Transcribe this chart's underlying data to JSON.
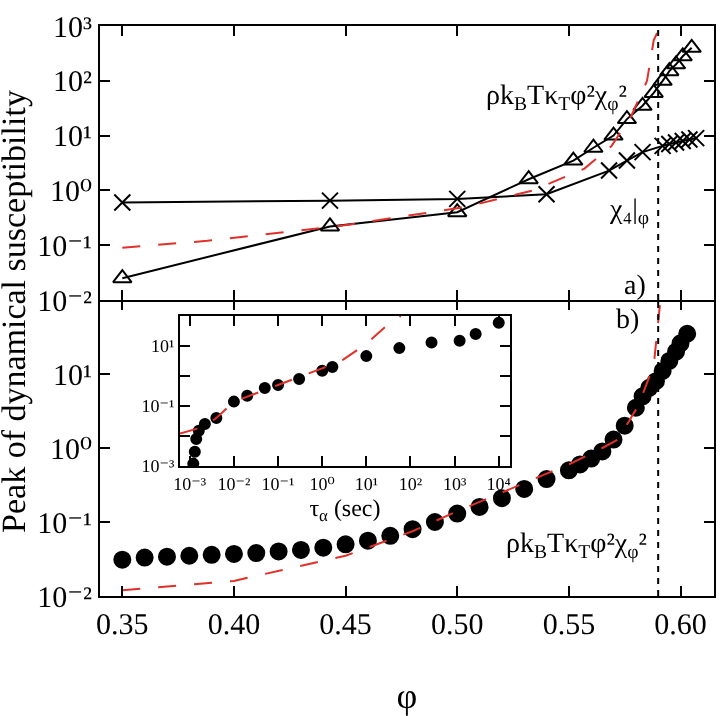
{
  "chart_data": [
    {
      "type": "line",
      "ylabel": "Peak of dynamical susceptibility",
      "log": "y",
      "tick_labels": "y",
      "xlim": [
        0.34,
        0.615
      ],
      "ylim": [
        0.01,
        1000
      ],
      "xticks": [
        {
          "value": 0.35,
          "label": null
        },
        {
          "value": 0.4,
          "label": null
        },
        {
          "value": 0.45,
          "label": null
        },
        {
          "value": 0.5,
          "label": null
        },
        {
          "value": 0.55,
          "label": null
        },
        {
          "value": 0.6,
          "label": null
        }
      ],
      "yticks": [
        {
          "value": 0.01,
          "label": "10⁻²"
        },
        {
          "value": 0.1,
          "label": "10⁻¹"
        },
        {
          "value": 1,
          "label": "10⁰"
        },
        {
          "value": 10,
          "label": "10¹"
        },
        {
          "value": 100,
          "label": "10²"
        },
        {
          "value": 1000,
          "label": "10³"
        }
      ],
      "series": [
        {
          "color": "#000000",
          "marker": "cross",
          "x": [
            0.35,
            0.443,
            0.5,
            0.54,
            0.568,
            0.576,
            0.583,
            0.592,
            0.595,
            0.598,
            0.601,
            0.604,
            0.607
          ],
          "values": [
            0.6,
            0.65,
            0.7,
            0.85,
            2.3,
            3.5,
            5,
            6.5,
            7,
            7.5,
            8,
            8.5,
            9
          ]
        },
        {
          "color": "#000000",
          "marker": "triangle",
          "x": [
            0.35,
            0.443,
            0.5,
            0.532,
            0.552,
            0.561,
            0.57,
            0.576,
            0.583,
            0.588,
            0.592,
            0.595,
            0.598,
            0.601,
            0.605
          ],
          "values": [
            0.025,
            0.22,
            0.4,
            1.6,
            3.5,
            6,
            10,
            20,
            35,
            60,
            100,
            150,
            200,
            280,
            400
          ]
        },
        {
          "color": "#e0302a",
          "marker": "none",
          "line_style": "dashed",
          "x": [
            0.35,
            0.388,
            0.446,
            0.504,
            0.534,
            0.557,
            0.569,
            0.578,
            0.585,
            0.588,
            0.591
          ],
          "values": [
            0.09,
            0.12,
            0.22,
            0.5,
            1,
            2.5,
            6.4,
            23,
            100,
            550,
            1000
          ]
        }
      ],
      "ref_lines": [
        {
          "axis": "x",
          "value": 0.59,
          "color": "#000000",
          "line_style": "dotted"
        }
      ],
      "annotations": [
        "ρk$_{B}$Tκ$_{T}$φ²χ$_{φ}$²",
        "χ₄|$_{φ}$",
        "a)"
      ]
    },
    {
      "type": "scatter",
      "xlabel": "φ",
      "log": "y",
      "xlim": [
        0.34,
        0.615
      ],
      "ylim": [
        0.01,
        100
      ],
      "xticks": [
        {
          "value": 0.35,
          "label": "0.35"
        },
        {
          "value": 0.4,
          "label": "0.40"
        },
        {
          "value": 0.45,
          "label": "0.45"
        },
        {
          "value": 0.5,
          "label": "0.50"
        },
        {
          "value": 0.55,
          "label": "0.55"
        },
        {
          "value": 0.6,
          "label": "0.60"
        }
      ],
      "yticks": [
        {
          "value": 0.01,
          "label": "10⁻²"
        },
        {
          "value": 0.1,
          "label": "10⁻¹"
        },
        {
          "value": 1,
          "label": "10⁰"
        },
        {
          "value": 10,
          "label": "10¹"
        },
        {
          "value": 100,
          "label": null
        }
      ],
      "series": [
        {
          "color": "#000000",
          "marker": "circle",
          "x": [
            0.35,
            0.36,
            0.37,
            0.38,
            0.39,
            0.4,
            0.41,
            0.42,
            0.43,
            0.44,
            0.45,
            0.46,
            0.47,
            0.48,
            0.49,
            0.5,
            0.51,
            0.52,
            0.53,
            0.54,
            0.55,
            0.555,
            0.56,
            0.565,
            0.57,
            0.575,
            0.58,
            0.583,
            0.586,
            0.589,
            0.592,
            0.595,
            0.598,
            0.6,
            0.603
          ],
          "values": [
            0.031,
            0.033,
            0.034,
            0.035,
            0.036,
            0.037,
            0.038,
            0.04,
            0.042,
            0.045,
            0.05,
            0.056,
            0.065,
            0.08,
            0.1,
            0.13,
            0.16,
            0.21,
            0.28,
            0.38,
            0.5,
            0.6,
            0.72,
            0.9,
            1.3,
            2,
            3.5,
            5,
            6.5,
            8,
            11,
            15,
            20,
            26,
            35
          ]
        },
        {
          "type": "line",
          "color": "#e0302a",
          "marker": "none",
          "line_style": "dashed",
          "x": [
            0.35,
            0.4,
            0.45,
            0.48,
            0.5,
            0.52,
            0.54,
            0.55,
            0.565,
            0.572,
            0.581,
            0.588,
            0.591
          ],
          "values": [
            0.012,
            0.016,
            0.035,
            0.075,
            0.14,
            0.25,
            0.45,
            0.6,
            1,
            1.3,
            3.7,
            13,
            100
          ]
        }
      ],
      "ref_lines": [
        {
          "axis": "x",
          "value": 0.59,
          "color": "#000000",
          "line_style": "dotted"
        }
      ],
      "annotations": [
        "ρk$_{B}$Tκ$_{T}$φ²χ$_{φ}$²",
        "b)"
      ]
    },
    {
      "type": "scatter",
      "xlabel": "τ$_{α}$ (sec)",
      "log": "xy",
      "xlim": [
        0.0006,
        18000
      ],
      "ylim": [
        0.001,
        100
      ],
      "xticks": [
        {
          "value": 0.001,
          "label": "10⁻³"
        },
        {
          "value": 0.01,
          "label": "10⁻²"
        },
        {
          "value": 0.1,
          "label": "10⁻¹"
        },
        {
          "value": 1,
          "label": "10⁰"
        },
        {
          "value": 10,
          "label": "10¹"
        },
        {
          "value": 100,
          "label": "10²"
        },
        {
          "value": 1000,
          "label": "10³"
        },
        {
          "value": 10000,
          "label": "10⁴"
        }
      ],
      "yticks": [
        {
          "value": 0.001,
          "label": "10⁻³"
        },
        {
          "value": 0.01,
          "label": null
        },
        {
          "value": 0.1,
          "label": "10⁻¹"
        },
        {
          "value": 1,
          "label": null
        },
        {
          "value": 10,
          "label": "10¹"
        }
      ],
      "series": [
        {
          "color": "#000000",
          "marker": "circle",
          "x": [
            0.0012,
            0.0013,
            0.0014,
            0.0016,
            0.0022,
            0.004,
            0.01,
            0.02,
            0.05,
            0.1,
            0.3,
            1,
            1.7,
            10,
            56,
            300,
            1300,
            3000,
            10000
          ],
          "values": [
            0.0012,
            0.003,
            0.008,
            0.015,
            0.025,
            0.04,
            0.14,
            0.22,
            0.4,
            0.5,
            0.8,
            1.5,
            2,
            4.6,
            8.5,
            13,
            15,
            25,
            60
          ]
        },
        {
          "type": "line",
          "color": "#e0302a",
          "marker": "none",
          "line_style": "dashed",
          "x": [
            0.0006,
            0.002,
            0.004,
            0.01,
            0.1,
            1,
            3,
            10,
            30,
            60
          ],
          "values": [
            0.012,
            0.02,
            0.04,
            0.14,
            0.5,
            1.8,
            3.5,
            12,
            50,
            100
          ]
        }
      ]
    }
  ]
}
